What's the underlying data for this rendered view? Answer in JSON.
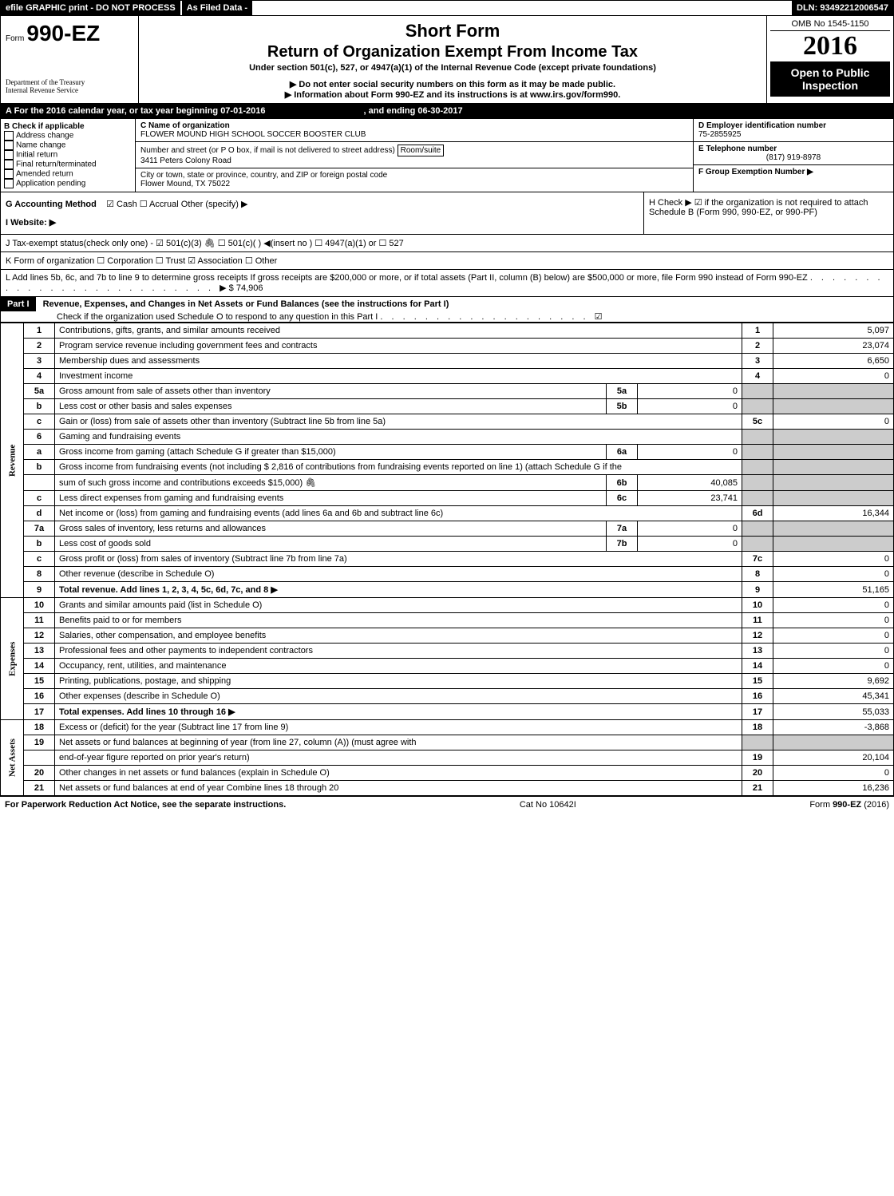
{
  "topbar": {
    "efile": "efile GRAPHIC print - DO NOT PROCESS",
    "asfiled": "As Filed Data -",
    "dln": "DLN: 93492212006547"
  },
  "header": {
    "form_prefix": "Form",
    "form_no": "990-EZ",
    "short_form": "Short Form",
    "title": "Return of Organization Exempt From Income Tax",
    "under": "Under section 501(c), 527, or 4947(a)(1) of the Internal Revenue Code (except private foundations)",
    "note1": "▶ Do not enter social security numbers on this form as it may be made public.",
    "note2": "▶ Information about Form 990-EZ and its instructions is at www.irs.gov/form990.",
    "omb": "OMB No 1545-1150",
    "year": "2016",
    "open": "Open to Public Inspection",
    "dept1": "Department of the Treasury",
    "dept2": "Internal Revenue Service"
  },
  "sectionA": {
    "text": "A  For the 2016 calendar year, or tax year beginning 07-01-2016",
    "ending": ", and ending 06-30-2017"
  },
  "boxB": {
    "label": "B  Check if applicable",
    "items": [
      "Address change",
      "Name change",
      "Initial return",
      "Final return/terminated",
      "Amended return",
      "Application pending"
    ]
  },
  "boxC": {
    "name_label": "C Name of organization",
    "name": "FLOWER MOUND HIGH SCHOOL SOCCER BOOSTER CLUB",
    "street_label": "Number and street (or P  O  box, if mail is not delivered to street address)",
    "room": "Room/suite",
    "street": "3411 Peters Colony Road",
    "city_label": "City or town, state or province, country, and ZIP or foreign postal code",
    "city": "Flower Mound, TX  75022"
  },
  "boxD": {
    "label": "D Employer identification number",
    "ein": "75-2855925",
    "tel_label": "E Telephone number",
    "tel": "(817) 919-8978",
    "grp_label": "F Group Exemption Number   ▶"
  },
  "rowG": {
    "label": "G Accounting Method",
    "opts": "☑ Cash   ☐ Accrual   Other (specify) ▶"
  },
  "rowH": {
    "text": "H   Check ▶   ☑  if the organization is not required to attach Schedule B (Form 990, 990-EZ, or 990-PF)"
  },
  "rowI": {
    "label": "I Website: ▶"
  },
  "rowJ": {
    "text": "J Tax-exempt status(check only one) - ☑ 501(c)(3) 🖇 ☐ 501(c)( ) ◀(insert no ) ☐ 4947(a)(1) or ☐ 527"
  },
  "rowK": {
    "text": "K Form of organization    ☐ Corporation   ☐ Trust   ☑ Association   ☐ Other"
  },
  "rowL": {
    "text": "L Add lines 5b, 6c, and 7b to line 9 to determine gross receipts  If gross receipts are $200,000 or more, or if total assets (Part II, column (B) below) are $500,000 or more, file Form 990 instead of Form 990-EZ",
    "amount": "▶ $ 74,906"
  },
  "part1": {
    "label": "Part I",
    "title": "Revenue, Expenses, and Changes in Net Assets or Fund Balances (see the instructions for Part I)",
    "check": "Check if the organization used Schedule O to respond to any question in this Part I",
    "checked": "☑"
  },
  "sides": {
    "rev": "Revenue",
    "exp": "Expenses",
    "net": "Net Assets"
  },
  "lines": [
    {
      "n": "1",
      "d": "Contributions, gifts, grants, and similar amounts received",
      "r": "1",
      "v": "5,097"
    },
    {
      "n": "2",
      "d": "Program service revenue including government fees and contracts",
      "r": "2",
      "v": "23,074"
    },
    {
      "n": "3",
      "d": "Membership dues and assessments",
      "r": "3",
      "v": "6,650"
    },
    {
      "n": "4",
      "d": "Investment income",
      "r": "4",
      "v": "0"
    },
    {
      "n": "5a",
      "d": "Gross amount from sale of assets other than inventory",
      "mr": "5a",
      "mv": "0"
    },
    {
      "n": "b",
      "d": "Less  cost or other basis and sales expenses",
      "mr": "5b",
      "mv": "0"
    },
    {
      "n": "c",
      "d": "Gain or (loss) from sale of assets other than inventory (Subtract line 5b from line 5a)",
      "r": "5c",
      "v": "0"
    },
    {
      "n": "6",
      "d": "Gaming and fundraising events"
    },
    {
      "n": "a",
      "d": "Gross income from gaming (attach Schedule G if greater than $15,000)",
      "mr": "6a",
      "mv": "0"
    },
    {
      "n": "b",
      "d": "Gross income from fundraising events (not including $  2,816      of contributions from fundraising events reported on line 1) (attach Schedule G if the"
    },
    {
      "n": "",
      "d": "sum of such gross income and contributions exceeds $15,000) 🖇",
      "mr": "6b",
      "mv": "40,085"
    },
    {
      "n": "c",
      "d": "Less  direct expenses from gaming and fundraising events",
      "mr": "6c",
      "mv": "23,741"
    },
    {
      "n": "d",
      "d": "Net income or (loss) from gaming and fundraising events (add lines 6a and 6b and subtract line 6c)",
      "r": "6d",
      "v": "16,344"
    },
    {
      "n": "7a",
      "d": "Gross sales of inventory, less returns and allowances",
      "mr": "7a",
      "mv": "0"
    },
    {
      "n": "b",
      "d": "Less  cost of goods sold",
      "mr": "7b",
      "mv": "0"
    },
    {
      "n": "c",
      "d": "Gross profit or (loss) from sales of inventory (Subtract line 7b from line 7a)",
      "r": "7c",
      "v": "0"
    },
    {
      "n": "8",
      "d": "Other revenue (describe in Schedule O)",
      "r": "8",
      "v": "0"
    },
    {
      "n": "9",
      "d": "Total revenue. Add lines 1, 2, 3, 4, 5c, 6d, 7c, and 8   ▶",
      "r": "9",
      "v": "51,165",
      "bold": true
    },
    {
      "n": "10",
      "d": "Grants and similar amounts paid (list in Schedule O)",
      "r": "10",
      "v": "0"
    },
    {
      "n": "11",
      "d": "Benefits paid to or for members",
      "r": "11",
      "v": "0"
    },
    {
      "n": "12",
      "d": "Salaries, other compensation, and employee benefits",
      "r": "12",
      "v": "0"
    },
    {
      "n": "13",
      "d": "Professional fees and other payments to independent contractors",
      "r": "13",
      "v": "0"
    },
    {
      "n": "14",
      "d": "Occupancy, rent, utilities, and maintenance",
      "r": "14",
      "v": "0"
    },
    {
      "n": "15",
      "d": "Printing, publications, postage, and shipping",
      "r": "15",
      "v": "9,692"
    },
    {
      "n": "16",
      "d": "Other expenses (describe in Schedule O)",
      "r": "16",
      "v": "45,341"
    },
    {
      "n": "17",
      "d": "Total expenses. Add lines 10 through 16   ▶",
      "r": "17",
      "v": "55,033",
      "bold": true
    },
    {
      "n": "18",
      "d": "Excess or (deficit) for the year (Subtract line 17 from line 9)",
      "r": "18",
      "v": "-3,868"
    },
    {
      "n": "19",
      "d": "Net assets or fund balances at beginning of year (from line 27, column (A)) (must agree with"
    },
    {
      "n": "",
      "d": "end-of-year figure reported on prior year's return)",
      "r": "19",
      "v": "20,104"
    },
    {
      "n": "20",
      "d": "Other changes in net assets or fund balances (explain in Schedule O)",
      "r": "20",
      "v": "0"
    },
    {
      "n": "21",
      "d": "Net assets or fund balances at end of year  Combine lines 18 through 20",
      "r": "21",
      "v": "16,236"
    }
  ],
  "footer": {
    "left": "For Paperwork Reduction Act Notice, see the separate instructions.",
    "mid": "Cat  No  10642I",
    "right": "Form 990-EZ (2016)"
  }
}
